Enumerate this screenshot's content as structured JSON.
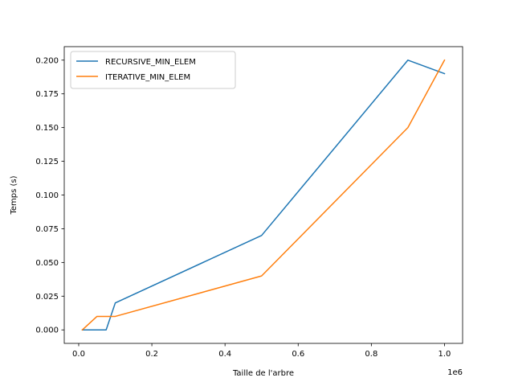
{
  "chart_data": {
    "type": "line",
    "title": "",
    "xlabel": "Taille de l'arbre",
    "ylabel": "Temps (s)",
    "x_multiplier_label": "1e6",
    "xlim": [
      -0.0395,
      1.0495
    ],
    "ylim": [
      -0.01,
      0.21
    ],
    "x_ticks": [
      0.0,
      0.2,
      0.4,
      0.6,
      0.8,
      1.0
    ],
    "x_tick_labels": [
      "0.0",
      "0.2",
      "0.4",
      "0.6",
      "0.8",
      "1.0"
    ],
    "y_ticks": [
      0.0,
      0.025,
      0.05,
      0.075,
      0.1,
      0.125,
      0.15,
      0.175,
      0.2
    ],
    "y_tick_labels": [
      "0.000",
      "0.025",
      "0.050",
      "0.075",
      "0.100",
      "0.125",
      "0.150",
      "0.175",
      "0.200"
    ],
    "grid": false,
    "legend_position": "upper-left",
    "series": [
      {
        "name": "RECURSIVE_MIN_ELEM",
        "color": "#1f77b4",
        "x": [
          0.01,
          0.05,
          0.075,
          0.1,
          0.5,
          0.9,
          1.0
        ],
        "y": [
          0.0,
          0.0,
          0.0,
          0.02,
          0.07,
          0.2,
          0.19
        ]
      },
      {
        "name": "ITERATIVE_MIN_ELEM",
        "color": "#ff7f0e",
        "x": [
          0.01,
          0.05,
          0.075,
          0.1,
          0.5,
          0.9,
          1.0
        ],
        "y": [
          0.0,
          0.01,
          0.01,
          0.01,
          0.04,
          0.15,
          0.2
        ]
      }
    ]
  }
}
